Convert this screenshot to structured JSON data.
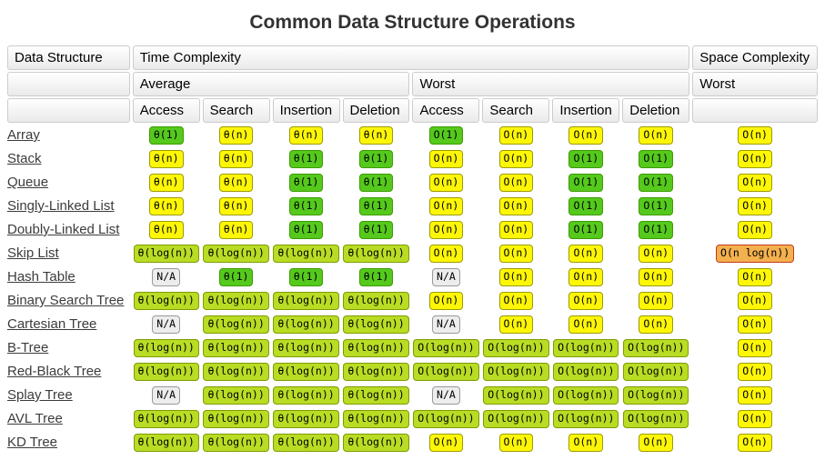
{
  "title": "Common Data Structure Operations",
  "table": {
    "header": {
      "data_structure": "Data Structure",
      "time_complexity": "Time Complexity",
      "space_complexity": "Space Complexity",
      "average": "Average",
      "worst": "Worst",
      "space_worst": "Worst",
      "operations": [
        "Access",
        "Search",
        "Insertion",
        "Deletion"
      ]
    },
    "levels": {
      "excellent": {
        "bg": "#55c91c",
        "border": "#3e9b01"
      },
      "good": {
        "bg": "#b9dc24",
        "border": "#7e9c00"
      },
      "fair": {
        "bg": "#fdf607",
        "border": "#9c9c00"
      },
      "bad": {
        "bg": "#f3b04e",
        "border": "#c5391b"
      },
      "na": {
        "bg": "#ededed",
        "border": "#999999"
      }
    },
    "rows": [
      {
        "name": "Array",
        "average": [
          {
            "text": "θ(1)",
            "level": "excellent"
          },
          {
            "text": "θ(n)",
            "level": "fair"
          },
          {
            "text": "θ(n)",
            "level": "fair"
          },
          {
            "text": "θ(n)",
            "level": "fair"
          }
        ],
        "worst": [
          {
            "text": "O(1)",
            "level": "excellent"
          },
          {
            "text": "O(n)",
            "level": "fair"
          },
          {
            "text": "O(n)",
            "level": "fair"
          },
          {
            "text": "O(n)",
            "level": "fair"
          }
        ],
        "space": {
          "text": "O(n)",
          "level": "fair"
        }
      },
      {
        "name": "Stack",
        "average": [
          {
            "text": "θ(n)",
            "level": "fair"
          },
          {
            "text": "θ(n)",
            "level": "fair"
          },
          {
            "text": "θ(1)",
            "level": "excellent"
          },
          {
            "text": "θ(1)",
            "level": "excellent"
          }
        ],
        "worst": [
          {
            "text": "O(n)",
            "level": "fair"
          },
          {
            "text": "O(n)",
            "level": "fair"
          },
          {
            "text": "O(1)",
            "level": "excellent"
          },
          {
            "text": "O(1)",
            "level": "excellent"
          }
        ],
        "space": {
          "text": "O(n)",
          "level": "fair"
        }
      },
      {
        "name": "Queue",
        "average": [
          {
            "text": "θ(n)",
            "level": "fair"
          },
          {
            "text": "θ(n)",
            "level": "fair"
          },
          {
            "text": "θ(1)",
            "level": "excellent"
          },
          {
            "text": "θ(1)",
            "level": "excellent"
          }
        ],
        "worst": [
          {
            "text": "O(n)",
            "level": "fair"
          },
          {
            "text": "O(n)",
            "level": "fair"
          },
          {
            "text": "O(1)",
            "level": "excellent"
          },
          {
            "text": "O(1)",
            "level": "excellent"
          }
        ],
        "space": {
          "text": "O(n)",
          "level": "fair"
        }
      },
      {
        "name": "Singly-Linked List",
        "average": [
          {
            "text": "θ(n)",
            "level": "fair"
          },
          {
            "text": "θ(n)",
            "level": "fair"
          },
          {
            "text": "θ(1)",
            "level": "excellent"
          },
          {
            "text": "θ(1)",
            "level": "excellent"
          }
        ],
        "worst": [
          {
            "text": "O(n)",
            "level": "fair"
          },
          {
            "text": "O(n)",
            "level": "fair"
          },
          {
            "text": "O(1)",
            "level": "excellent"
          },
          {
            "text": "O(1)",
            "level": "excellent"
          }
        ],
        "space": {
          "text": "O(n)",
          "level": "fair"
        }
      },
      {
        "name": "Doubly-Linked List",
        "average": [
          {
            "text": "θ(n)",
            "level": "fair"
          },
          {
            "text": "θ(n)",
            "level": "fair"
          },
          {
            "text": "θ(1)",
            "level": "excellent"
          },
          {
            "text": "θ(1)",
            "level": "excellent"
          }
        ],
        "worst": [
          {
            "text": "O(n)",
            "level": "fair"
          },
          {
            "text": "O(n)",
            "level": "fair"
          },
          {
            "text": "O(1)",
            "level": "excellent"
          },
          {
            "text": "O(1)",
            "level": "excellent"
          }
        ],
        "space": {
          "text": "O(n)",
          "level": "fair"
        }
      },
      {
        "name": "Skip List",
        "average": [
          {
            "text": "θ(log(n))",
            "level": "good"
          },
          {
            "text": "θ(log(n))",
            "level": "good"
          },
          {
            "text": "θ(log(n))",
            "level": "good"
          },
          {
            "text": "θ(log(n))",
            "level": "good"
          }
        ],
        "worst": [
          {
            "text": "O(n)",
            "level": "fair"
          },
          {
            "text": "O(n)",
            "level": "fair"
          },
          {
            "text": "O(n)",
            "level": "fair"
          },
          {
            "text": "O(n)",
            "level": "fair"
          }
        ],
        "space": {
          "text": "O(n log(n))",
          "level": "bad"
        }
      },
      {
        "name": "Hash Table",
        "average": [
          {
            "text": "N/A",
            "level": "na"
          },
          {
            "text": "θ(1)",
            "level": "excellent"
          },
          {
            "text": "θ(1)",
            "level": "excellent"
          },
          {
            "text": "θ(1)",
            "level": "excellent"
          }
        ],
        "worst": [
          {
            "text": "N/A",
            "level": "na"
          },
          {
            "text": "O(n)",
            "level": "fair"
          },
          {
            "text": "O(n)",
            "level": "fair"
          },
          {
            "text": "O(n)",
            "level": "fair"
          }
        ],
        "space": {
          "text": "O(n)",
          "level": "fair"
        }
      },
      {
        "name": "Binary Search Tree",
        "average": [
          {
            "text": "θ(log(n))",
            "level": "good"
          },
          {
            "text": "θ(log(n))",
            "level": "good"
          },
          {
            "text": "θ(log(n))",
            "level": "good"
          },
          {
            "text": "θ(log(n))",
            "level": "good"
          }
        ],
        "worst": [
          {
            "text": "O(n)",
            "level": "fair"
          },
          {
            "text": "O(n)",
            "level": "fair"
          },
          {
            "text": "O(n)",
            "level": "fair"
          },
          {
            "text": "O(n)",
            "level": "fair"
          }
        ],
        "space": {
          "text": "O(n)",
          "level": "fair"
        }
      },
      {
        "name": "Cartesian Tree",
        "average": [
          {
            "text": "N/A",
            "level": "na"
          },
          {
            "text": "θ(log(n))",
            "level": "good"
          },
          {
            "text": "θ(log(n))",
            "level": "good"
          },
          {
            "text": "θ(log(n))",
            "level": "good"
          }
        ],
        "worst": [
          {
            "text": "N/A",
            "level": "na"
          },
          {
            "text": "O(n)",
            "level": "fair"
          },
          {
            "text": "O(n)",
            "level": "fair"
          },
          {
            "text": "O(n)",
            "level": "fair"
          }
        ],
        "space": {
          "text": "O(n)",
          "level": "fair"
        }
      },
      {
        "name": "B-Tree",
        "average": [
          {
            "text": "θ(log(n))",
            "level": "good"
          },
          {
            "text": "θ(log(n))",
            "level": "good"
          },
          {
            "text": "θ(log(n))",
            "level": "good"
          },
          {
            "text": "θ(log(n))",
            "level": "good"
          }
        ],
        "worst": [
          {
            "text": "O(log(n))",
            "level": "good"
          },
          {
            "text": "O(log(n))",
            "level": "good"
          },
          {
            "text": "O(log(n))",
            "level": "good"
          },
          {
            "text": "O(log(n))",
            "level": "good"
          }
        ],
        "space": {
          "text": "O(n)",
          "level": "fair"
        }
      },
      {
        "name": "Red-Black Tree",
        "average": [
          {
            "text": "θ(log(n))",
            "level": "good"
          },
          {
            "text": "θ(log(n))",
            "level": "good"
          },
          {
            "text": "θ(log(n))",
            "level": "good"
          },
          {
            "text": "θ(log(n))",
            "level": "good"
          }
        ],
        "worst": [
          {
            "text": "O(log(n))",
            "level": "good"
          },
          {
            "text": "O(log(n))",
            "level": "good"
          },
          {
            "text": "O(log(n))",
            "level": "good"
          },
          {
            "text": "O(log(n))",
            "level": "good"
          }
        ],
        "space": {
          "text": "O(n)",
          "level": "fair"
        }
      },
      {
        "name": "Splay Tree",
        "average": [
          {
            "text": "N/A",
            "level": "na"
          },
          {
            "text": "θ(log(n))",
            "level": "good"
          },
          {
            "text": "θ(log(n))",
            "level": "good"
          },
          {
            "text": "θ(log(n))",
            "level": "good"
          }
        ],
        "worst": [
          {
            "text": "N/A",
            "level": "na"
          },
          {
            "text": "O(log(n))",
            "level": "good"
          },
          {
            "text": "O(log(n))",
            "level": "good"
          },
          {
            "text": "O(log(n))",
            "level": "good"
          }
        ],
        "space": {
          "text": "O(n)",
          "level": "fair"
        }
      },
      {
        "name": "AVL Tree",
        "average": [
          {
            "text": "θ(log(n))",
            "level": "good"
          },
          {
            "text": "θ(log(n))",
            "level": "good"
          },
          {
            "text": "θ(log(n))",
            "level": "good"
          },
          {
            "text": "θ(log(n))",
            "level": "good"
          }
        ],
        "worst": [
          {
            "text": "O(log(n))",
            "level": "good"
          },
          {
            "text": "O(log(n))",
            "level": "good"
          },
          {
            "text": "O(log(n))",
            "level": "good"
          },
          {
            "text": "O(log(n))",
            "level": "good"
          }
        ],
        "space": {
          "text": "O(n)",
          "level": "fair"
        }
      },
      {
        "name": "KD Tree",
        "average": [
          {
            "text": "θ(log(n))",
            "level": "good"
          },
          {
            "text": "θ(log(n))",
            "level": "good"
          },
          {
            "text": "θ(log(n))",
            "level": "good"
          },
          {
            "text": "θ(log(n))",
            "level": "good"
          }
        ],
        "worst": [
          {
            "text": "O(n)",
            "level": "fair"
          },
          {
            "text": "O(n)",
            "level": "fair"
          },
          {
            "text": "O(n)",
            "level": "fair"
          },
          {
            "text": "O(n)",
            "level": "fair"
          }
        ],
        "space": {
          "text": "O(n)",
          "level": "fair"
        }
      }
    ]
  }
}
